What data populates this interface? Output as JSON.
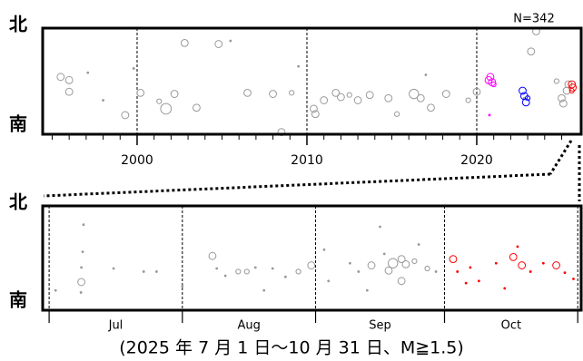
{
  "chart_data": [
    {
      "type": "scatter",
      "north_label": "北",
      "south_label": "南",
      "annotation": "N=342",
      "xlim": [
        1994.44,
        2026.15
      ],
      "ylim": [
        0,
        100
      ],
      "xticks": [
        2000,
        2010,
        2020
      ],
      "xminorticks": [
        1995,
        1996,
        1997,
        1998,
        1999,
        2001,
        2002,
        2003,
        2004,
        2005,
        2006,
        2007,
        2008,
        2009,
        2011,
        2012,
        2013,
        2014,
        2015,
        2016,
        2017,
        2018,
        2019,
        2021,
        2022,
        2023,
        2024,
        2025
      ],
      "grid": true,
      "series": [
        {
          "color": "#999999",
          "x": [
            1995.5,
            1996.0,
            1996.0,
            1997.1,
            1998.0,
            1999.3,
            1999.8,
            2000.2,
            2001.3,
            2001.7,
            2002.2,
            2002.8,
            2003.5,
            2004.8,
            2005.5,
            2006.5,
            2008.0,
            2008.5,
            2009.1,
            2009.5,
            2010.4,
            2010.5,
            2011.0,
            2011.7,
            2012.0,
            2012.5,
            2013.0,
            2013.7,
            2014.8,
            2015.3,
            2016.3,
            2016.7,
            2017.3,
            2017.0,
            2018.2,
            2019.5,
            2020.0,
            2022.8,
            2023.2,
            2023.5,
            2024.7,
            2025.0,
            2025.1,
            2025.4,
            2025.3
          ],
          "values": [
            54,
            51,
            40,
            58,
            32,
            18,
            62,
            39,
            31,
            24,
            38,
            86,
            25,
            85,
            88,
            39,
            38,
            2,
            39,
            64,
            24,
            19,
            32,
            39,
            35,
            37,
            32,
            37,
            34,
            19,
            38,
            34,
            25,
            56,
            38,
            32,
            40,
            34,
            78,
            97,
            50,
            34,
            29,
            47,
            41
          ],
          "magnitudes": [
            3,
            3,
            3,
            1.5,
            1.5,
            3,
            1.5,
            3,
            2,
            4.5,
            3,
            3,
            3,
            3,
            1.5,
            3,
            3,
            3,
            2,
            1.5,
            3,
            3,
            3,
            3,
            3,
            2,
            3,
            3,
            3,
            2,
            4,
            3,
            3,
            1.5,
            3,
            2,
            3,
            1.5,
            3,
            3,
            2,
            3,
            3,
            3,
            3
          ]
        },
        {
          "color": "#ff00ff",
          "x": [
            2020.7,
            2020.9,
            2020.8,
            2020.75,
            2021.0
          ],
          "values": [
            51,
            49,
            54,
            18,
            47
          ],
          "magnitudes": [
            3,
            3,
            3,
            1.5,
            2
          ]
        },
        {
          "color": "#0000ff",
          "x": [
            2022.7,
            2022.8,
            2022.9,
            2023.0
          ],
          "values": [
            41,
            36,
            30,
            34
          ],
          "magnitudes": [
            3,
            3,
            3,
            2
          ]
        },
        {
          "color": "#ff0000",
          "x": [
            2025.6,
            2025.65,
            2025.6
          ],
          "values": [
            47,
            44,
            41
          ],
          "magnitudes": [
            3,
            3,
            2
          ]
        }
      ]
    },
    {
      "type": "scatter",
      "north_label": "北",
      "south_label": "南",
      "caption": "(2025 年 7 月 1 日～10 月 31 日、M≧1.5)",
      "xlim": [
        -1.5,
        123.8
      ],
      "ylim": [
        0,
        100
      ],
      "month_bounds": [
        0,
        31,
        62,
        92,
        123
      ],
      "month_labels": [
        "Jul",
        "Aug",
        "Sep",
        "Oct"
      ],
      "grid": true,
      "series": [
        {
          "color": "#999999",
          "x": [
            7.5,
            7.5,
            7.8,
            8,
            7.4,
            1.5,
            15,
            22,
            25,
            31,
            38,
            39,
            41,
            44,
            46,
            48,
            52,
            55,
            58,
            61,
            50,
            64,
            70,
            72,
            75,
            78,
            79,
            80,
            82,
            83,
            85,
            82,
            86,
            88,
            90,
            74,
            77,
            65
          ],
          "values": [
            27,
            41,
            56,
            82,
            17,
            19,
            40,
            37,
            37,
            23,
            52,
            40,
            33,
            37,
            37,
            41,
            40,
            32,
            37,
            43,
            19,
            58,
            45,
            37,
            43,
            54,
            38,
            45,
            49,
            44,
            47,
            28,
            63,
            40,
            37,
            19,
            80,
            28
          ],
          "magnitudes": [
            3,
            1.5,
            1.5,
            1.5,
            1.5,
            1.5,
            1.5,
            1.5,
            1.5,
            1.5,
            3,
            1.5,
            1.5,
            2,
            2,
            1.5,
            1.5,
            1.5,
            2,
            3,
            1.5,
            1.5,
            1.5,
            1.5,
            3,
            1.5,
            3,
            4,
            3,
            3,
            2,
            3,
            1.5,
            2,
            1.5,
            1.5,
            1.5,
            1.5
          ]
        },
        {
          "color": "#ff0000",
          "x": [
            94,
            95,
            98,
            100,
            104,
            108,
            110,
            109,
            112,
            115,
            118,
            120,
            97,
            106,
            122
          ],
          "values": [
            49,
            37,
            41,
            28,
            45,
            51,
            43,
            61,
            37,
            45,
            43,
            36,
            26,
            21,
            30
          ],
          "magnitudes": [
            3,
            1.5,
            1.5,
            1.5,
            1.5,
            3,
            3,
            1.5,
            1.5,
            1.5,
            3,
            1.5,
            1.5,
            1.5,
            1.5
          ]
        }
      ]
    }
  ]
}
